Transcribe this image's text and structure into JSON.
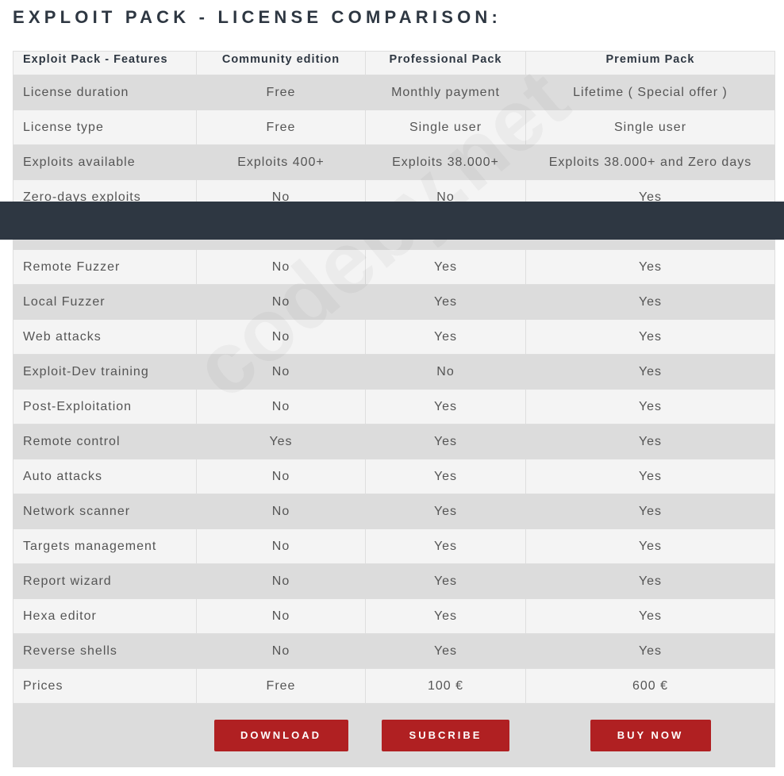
{
  "title": "EXPLOIT PACK - LICENSE COMPARISON:",
  "watermark": "codeby.net",
  "colors": {
    "title": "#2e3742",
    "button": "#b02022",
    "overlay": "#2e3742"
  },
  "headers": [
    "Exploit Pack - Features",
    "Community edition",
    "Professional Pack",
    "Premium Pack"
  ],
  "rows": [
    [
      "License duration",
      "Free",
      "Monthly payment",
      "Lifetime ( Special offer )"
    ],
    [
      "License type",
      "Free",
      "Single user",
      "Single user"
    ],
    [
      "Exploits available",
      "Exploits 400+",
      "Exploits 38.000+",
      "Exploits 38.000+ and Zero days"
    ],
    [
      "Zero-days exploits",
      "No",
      "No",
      "Yes"
    ],
    [
      "",
      "",
      "",
      ""
    ],
    [
      "Remote Fuzzer",
      "No",
      "Yes",
      "Yes"
    ],
    [
      "Local Fuzzer",
      "No",
      "Yes",
      "Yes"
    ],
    [
      "Web attacks",
      "No",
      "Yes",
      "Yes"
    ],
    [
      "Exploit-Dev training",
      "No",
      "No",
      "Yes"
    ],
    [
      "Post-Exploitation",
      "No",
      "Yes",
      "Yes"
    ],
    [
      "Remote control",
      "Yes",
      "Yes",
      "Yes"
    ],
    [
      "Auto attacks",
      "No",
      "Yes",
      "Yes"
    ],
    [
      "Network scanner",
      "No",
      "Yes",
      "Yes"
    ],
    [
      "Targets management",
      "No",
      "Yes",
      "Yes"
    ],
    [
      "Report wizard",
      "No",
      "Yes",
      "Yes"
    ],
    [
      "Hexa editor",
      "No",
      "Yes",
      "Yes"
    ],
    [
      "Reverse shells",
      "No",
      "Yes",
      "Yes"
    ],
    [
      "Prices",
      "Free",
      "100 €",
      "600 €"
    ]
  ],
  "buttons": {
    "download": "DOWNLOAD",
    "subscribe": "SUBCRIBE",
    "buy": "BUY NOW"
  }
}
